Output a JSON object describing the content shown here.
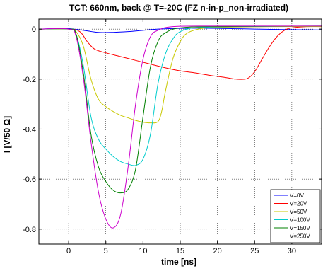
{
  "chart_data": {
    "type": "line",
    "title": "TCT: 660nm, back @ T=-20C (FZ n-in-p_non-irradiated)",
    "xlabel": "time [ns]",
    "ylabel": "I [V/50 Ω]",
    "xlim": [
      -4,
      34
    ],
    "ylim": [
      -0.86,
      0.04
    ],
    "xticks": [
      0,
      5,
      10,
      15,
      20,
      25,
      30
    ],
    "xtick_labels": [
      "0",
      "5",
      "10",
      "15",
      "20",
      "25",
      "30"
    ],
    "yticks": [
      0,
      -0.2,
      -0.4,
      -0.6,
      -0.8
    ],
    "ytick_labels": [
      "0",
      "-0.2",
      "-0.4",
      "-0.6",
      "-0.8"
    ],
    "grid": true,
    "legend_position": "bottom-right",
    "series": [
      {
        "name": "V=0V",
        "color": "#0000ff",
        "points": [
          [
            -4,
            0
          ],
          [
            -1,
            0.003
          ],
          [
            0,
            0.002
          ],
          [
            2,
            -0.005
          ],
          [
            4,
            -0.013
          ],
          [
            6,
            -0.013
          ],
          [
            8,
            -0.01
          ],
          [
            10,
            -0.005
          ],
          [
            12,
            0
          ],
          [
            15,
            0.003
          ],
          [
            20,
            0.003
          ],
          [
            25,
            0
          ],
          [
            30,
            -0.002
          ],
          [
            34,
            -0.003
          ]
        ]
      },
      {
        "name": "V=20V",
        "color": "#ff0000",
        "points": [
          [
            -4,
            0
          ],
          [
            0,
            0
          ],
          [
            1.5,
            -0.01
          ],
          [
            2.5,
            -0.05
          ],
          [
            3.5,
            -0.08
          ],
          [
            5,
            -0.095
          ],
          [
            7,
            -0.11
          ],
          [
            9,
            -0.125
          ],
          [
            11,
            -0.14
          ],
          [
            13,
            -0.155
          ],
          [
            15,
            -0.167
          ],
          [
            17,
            -0.175
          ],
          [
            19,
            -0.185
          ],
          [
            21,
            -0.193
          ],
          [
            22.5,
            -0.2
          ],
          [
            24,
            -0.198
          ],
          [
            25,
            -0.17
          ],
          [
            26,
            -0.12
          ],
          [
            27,
            -0.07
          ],
          [
            28,
            -0.03
          ],
          [
            29,
            -0.005
          ],
          [
            30,
            0.005
          ],
          [
            32,
            0.01
          ],
          [
            34,
            0.01
          ]
        ]
      },
      {
        "name": "V=50V",
        "color": "#c8c800",
        "points": [
          [
            -4,
            0
          ],
          [
            0,
            0
          ],
          [
            1,
            -0.01
          ],
          [
            2,
            -0.07
          ],
          [
            3,
            -0.2
          ],
          [
            4,
            -0.28
          ],
          [
            5,
            -0.31
          ],
          [
            6,
            -0.33
          ],
          [
            7,
            -0.345
          ],
          [
            8,
            -0.355
          ],
          [
            9,
            -0.365
          ],
          [
            10,
            -0.372
          ],
          [
            11,
            -0.375
          ],
          [
            12,
            -0.37
          ],
          [
            12.5,
            -0.33
          ],
          [
            13,
            -0.25
          ],
          [
            14,
            -0.12
          ],
          [
            15,
            -0.05
          ],
          [
            16,
            -0.015
          ],
          [
            18,
            0.003
          ],
          [
            22,
            0.008
          ],
          [
            28,
            0.01
          ],
          [
            34,
            0.01
          ]
        ]
      },
      {
        "name": "V=100V",
        "color": "#00cccc",
        "points": [
          [
            -4,
            0
          ],
          [
            0,
            0
          ],
          [
            1,
            -0.02
          ],
          [
            2,
            -0.15
          ],
          [
            3,
            -0.35
          ],
          [
            4,
            -0.44
          ],
          [
            5,
            -0.48
          ],
          [
            6,
            -0.51
          ],
          [
            7,
            -0.53
          ],
          [
            8,
            -0.54
          ],
          [
            9,
            -0.545
          ],
          [
            10,
            -0.52
          ],
          [
            11,
            -0.42
          ],
          [
            12,
            -0.22
          ],
          [
            13,
            -0.1
          ],
          [
            14,
            -0.04
          ],
          [
            15,
            -0.01
          ],
          [
            17,
            0.005
          ],
          [
            22,
            0.01
          ],
          [
            34,
            0.012
          ]
        ]
      },
      {
        "name": "V=150V",
        "color": "#008000",
        "points": [
          [
            -4,
            0
          ],
          [
            0,
            0
          ],
          [
            1,
            -0.02
          ],
          [
            2,
            -0.18
          ],
          [
            3,
            -0.42
          ],
          [
            4,
            -0.55
          ],
          [
            5,
            -0.61
          ],
          [
            6,
            -0.645
          ],
          [
            7,
            -0.655
          ],
          [
            8,
            -0.64
          ],
          [
            9,
            -0.56
          ],
          [
            10,
            -0.35
          ],
          [
            11,
            -0.15
          ],
          [
            12,
            -0.05
          ],
          [
            13,
            -0.015
          ],
          [
            15,
            0.005
          ],
          [
            20,
            0.01
          ],
          [
            34,
            0.012
          ]
        ]
      },
      {
        "name": "V=250V",
        "color": "#cc00cc",
        "points": [
          [
            -4,
            0
          ],
          [
            0,
            0
          ],
          [
            1,
            -0.03
          ],
          [
            2,
            -0.2
          ],
          [
            3,
            -0.45
          ],
          [
            4,
            -0.65
          ],
          [
            5,
            -0.76
          ],
          [
            6,
            -0.795
          ],
          [
            7,
            -0.74
          ],
          [
            8,
            -0.55
          ],
          [
            9,
            -0.3
          ],
          [
            10,
            -0.12
          ],
          [
            11,
            -0.03
          ],
          [
            12,
            -0.005
          ],
          [
            14,
            0.01
          ],
          [
            20,
            0.012
          ],
          [
            34,
            0.012
          ]
        ]
      }
    ]
  }
}
